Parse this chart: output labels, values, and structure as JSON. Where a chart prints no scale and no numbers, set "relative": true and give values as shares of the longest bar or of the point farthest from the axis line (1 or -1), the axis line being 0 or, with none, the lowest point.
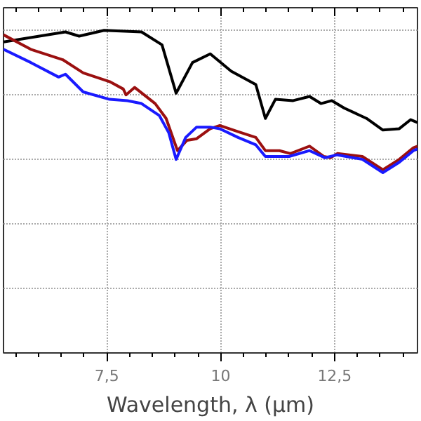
{
  "chart_data": {
    "type": "line",
    "xlabel": "Wavelength, λ (µm)",
    "relative": true,
    "grid": true,
    "line_style": "solid",
    "marker": "none",
    "tick_labels": "x",
    "xlim": [
      5.23,
      14.32
    ],
    "xticks": [
      {
        "value": 7.5,
        "label": "7,5"
      },
      10,
      {
        "value": 12.5,
        "label": "12,5"
      }
    ],
    "series": [
      {
        "color": "#000000",
        "x": [
          5.23,
          6.59,
          6.89,
          7.44,
          8.26,
          8.71,
          9.02,
          9.38,
          9.77,
          10.23,
          10.77,
          10.98,
          11.2,
          11.59,
          11.95,
          12.2,
          12.44,
          12.71,
          13.2,
          13.56,
          13.92,
          14.17,
          14.32
        ],
        "values": [
          0.964,
          0.995,
          0.982,
          1.0,
          0.995,
          0.955,
          0.805,
          0.9,
          0.927,
          0.873,
          0.832,
          0.727,
          0.786,
          0.782,
          0.795,
          0.773,
          0.782,
          0.759,
          0.727,
          0.691,
          0.695,
          0.723,
          0.714
        ]
      },
      {
        "color": "#9b1010",
        "x": [
          5.23,
          5.83,
          6.53,
          6.98,
          7.56,
          7.86,
          7.92,
          8.11,
          8.56,
          8.8,
          9.05,
          9.26,
          9.47,
          9.77,
          9.98,
          10.38,
          10.77,
          10.98,
          11.29,
          11.53,
          11.95,
          12.26,
          12.41,
          12.56,
          13.11,
          13.56,
          13.92,
          14.23,
          14.32
        ],
        "values": [
          0.986,
          0.941,
          0.909,
          0.868,
          0.841,
          0.818,
          0.8,
          0.823,
          0.773,
          0.727,
          0.627,
          0.659,
          0.664,
          0.695,
          0.705,
          0.686,
          0.668,
          0.627,
          0.627,
          0.618,
          0.641,
          0.609,
          0.605,
          0.618,
          0.609,
          0.568,
          0.6,
          0.636,
          0.641
        ]
      },
      {
        "color": "#1a1aff",
        "x": [
          5.23,
          5.83,
          6.44,
          6.59,
          6.98,
          7.56,
          7.95,
          8.26,
          8.65,
          8.86,
          9.02,
          9.23,
          9.47,
          9.77,
          9.98,
          10.38,
          10.77,
          10.98,
          11.5,
          11.95,
          12.29,
          12.56,
          13.11,
          13.56,
          13.92,
          14.23,
          14.32
        ],
        "values": [
          0.941,
          0.9,
          0.855,
          0.864,
          0.809,
          0.786,
          0.782,
          0.773,
          0.736,
          0.682,
          0.6,
          0.668,
          0.7,
          0.7,
          0.695,
          0.668,
          0.645,
          0.609,
          0.609,
          0.627,
          0.605,
          0.614,
          0.6,
          0.559,
          0.591,
          0.627,
          0.632
        ]
      }
    ]
  }
}
